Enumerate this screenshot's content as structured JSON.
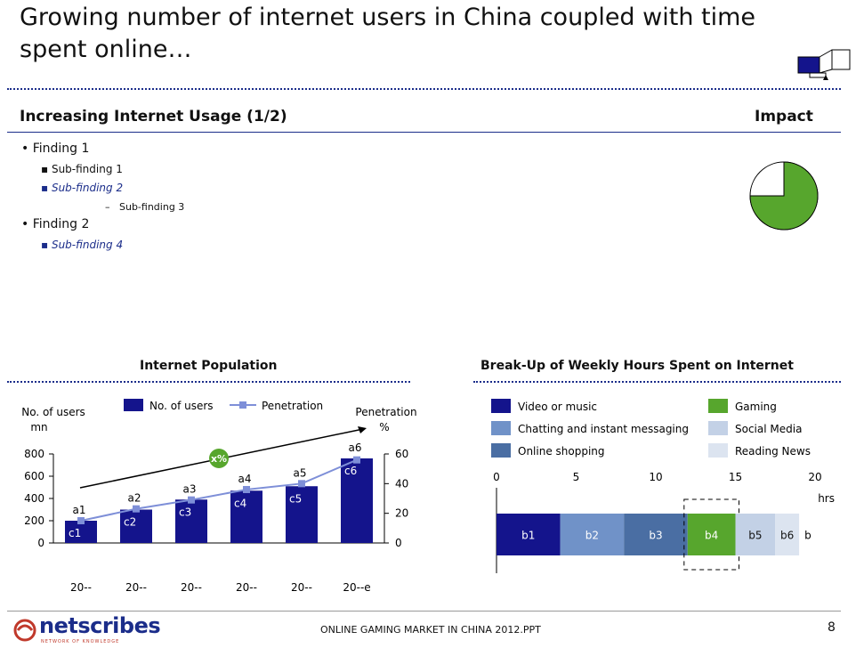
{
  "header": {
    "title": "Growing number of internet users in China coupled with time spent online…"
  },
  "section": {
    "title": "Increasing Internet Usage (1/2)",
    "impact_label": "Impact",
    "impact_fraction": 0.75
  },
  "findings": [
    {
      "label": "Finding 1",
      "subs": [
        {
          "label": "Sub-finding 1",
          "style": "normal"
        },
        {
          "label": "Sub-finding 2",
          "style": "italic"
        }
      ],
      "dash": "Sub-finding 3"
    },
    {
      "label": "Finding 2",
      "subs": [
        {
          "label": "Sub-finding 4",
          "style": "italic"
        }
      ]
    }
  ],
  "colors": {
    "navy": "#14148c",
    "green": "#57a62d",
    "line": "#7e8fd8"
  },
  "chart_data": [
    {
      "type": "bar",
      "title": "Internet Population",
      "categories": [
        "20--",
        "20--",
        "20--",
        "20--",
        "20--",
        "20--e"
      ],
      "ylabel": "No. of users mn",
      "y2label": "Penetration %",
      "ylim": [
        0,
        800
      ],
      "yticks": [
        "0",
        "200",
        "400",
        "600",
        "800"
      ],
      "y2lim": [
        0,
        60
      ],
      "y2ticks": [
        "0",
        "20",
        "40",
        "60"
      ],
      "legend": [
        "No. of users",
        "Penetration"
      ],
      "series": [
        {
          "name": "No. of users",
          "values": [
            200,
            300,
            390,
            470,
            510,
            760
          ],
          "labels": [
            "c1",
            "c2",
            "c3",
            "c4",
            "c5",
            "c6"
          ]
        },
        {
          "name": "Penetration",
          "values": [
            15,
            23,
            29,
            36,
            40,
            56
          ],
          "labels": [
            "a1",
            "a2",
            "a3",
            "a4",
            "a5",
            "a6"
          ]
        }
      ],
      "annotation": "x%"
    },
    {
      "type": "bar",
      "title": "Break-Up of Weekly Hours Spent on Internet",
      "xlim": [
        0,
        20
      ],
      "xticks": [
        "0",
        "5",
        "10",
        "15",
        "20"
      ],
      "xunit": "hrs",
      "total_label": "b",
      "legend": [
        "Video or music",
        "Chatting and instant messaging",
        "Online shopping",
        "Gaming",
        "Social Media",
        "Reading News"
      ],
      "series": [
        {
          "name": "Video or music",
          "value": 4,
          "label": "b1",
          "color": "#14148c"
        },
        {
          "name": "Chatting and instant messaging",
          "value": 4,
          "label": "b2",
          "color": "#7092c8"
        },
        {
          "name": "Online shopping",
          "value": 4,
          "label": "b3",
          "color": "#4a6ea3"
        },
        {
          "name": "Gaming",
          "value": 3,
          "label": "b4",
          "color": "#57a62d"
        },
        {
          "name": "Social Media",
          "value": 2.5,
          "label": "b5",
          "color": "#c3d1e6"
        },
        {
          "name": "Reading News",
          "value": 1.5,
          "label": "b6",
          "color": "#dce4f0"
        }
      ]
    }
  ],
  "footer": {
    "brand": "netscribes",
    "tagline": "NETWORK OF KNOWLEDGE",
    "file": "ONLINE GAMING MARKET IN CHINA 2012.PPT",
    "page": "8"
  }
}
